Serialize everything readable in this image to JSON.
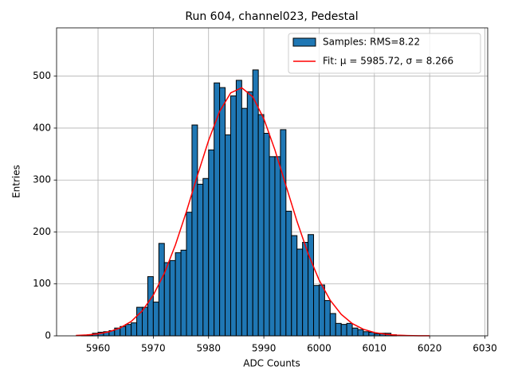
{
  "chart_data": {
    "type": "histogram",
    "title": "Run 604, channel023, Pedestal",
    "x_label": "ADC Counts",
    "y_label": "Entries",
    "bins": [
      5956,
      5957,
      5958,
      5959,
      5960,
      5961,
      5962,
      5963,
      5964,
      5965,
      5966,
      5967,
      5968,
      5969,
      5970,
      5971,
      5972,
      5973,
      5974,
      5975,
      5976,
      5977,
      5978,
      5979,
      5980,
      5981,
      5982,
      5983,
      5984,
      5985,
      5986,
      5987,
      5988,
      5989,
      5990,
      5991,
      5992,
      5993,
      5994,
      5995,
      5996,
      5997,
      5998,
      5999,
      6000,
      6001,
      6002,
      6003,
      6004,
      6005,
      6006,
      6007,
      6008,
      6009,
      6010,
      6011,
      6012,
      6013,
      6014
    ],
    "series": [
      {
        "name": "Samples: RMS=8.22",
        "type": "histogram",
        "color": "#1f77b4",
        "values": [
          0,
          1,
          2,
          5,
          7,
          8,
          10,
          15,
          18,
          22,
          25,
          55,
          55,
          114,
          65,
          178,
          141,
          145,
          160,
          165,
          238,
          406,
          292,
          303,
          358,
          487,
          478,
          387,
          462,
          492,
          438,
          470,
          512,
          426,
          390,
          345,
          345,
          397,
          240,
          193,
          167,
          180,
          195,
          97,
          98,
          68,
          43,
          24,
          22,
          24,
          15,
          12,
          8,
          7,
          4,
          5,
          5,
          2
        ]
      },
      {
        "name": "Fit: μ = 5985.72, σ = 8.266",
        "type": "line",
        "color": "#ff0000",
        "x": [
          5956,
          5958,
          5960,
          5962,
          5964,
          5966,
          5968,
          5970,
          5972,
          5974,
          5976,
          5978,
          5980,
          5982,
          5984,
          5986,
          5988,
          5990,
          5992,
          5994,
          5996,
          5998,
          6000,
          6002,
          6004,
          6006,
          6008,
          6010,
          6012,
          6014,
          6016,
          6018,
          6020
        ],
        "values": [
          0.7,
          1.7,
          3.8,
          7.8,
          15.2,
          27.8,
          48.0,
          78.4,
          120.5,
          175.0,
          239.5,
          309.3,
          376.2,
          432.1,
          467.8,
          477.7,
          460.2,
          417.9,
          358.1,
          289.3,
          220.4,
          158.5,
          107.4,
          68.6,
          41.5,
          23.6,
          12.7,
          6.4,
          3.1,
          1.4,
          0.6,
          0.2,
          0.1
        ]
      }
    ],
    "xlim": [
      5952.5,
      6030.5
    ],
    "ylim": [
      0,
      593
    ],
    "xticks": [
      5960,
      5970,
      5980,
      5990,
      6000,
      6010,
      6020,
      6030
    ],
    "yticks": [
      0,
      100,
      200,
      300,
      400,
      500
    ],
    "grid": true,
    "legend": "upper right"
  }
}
